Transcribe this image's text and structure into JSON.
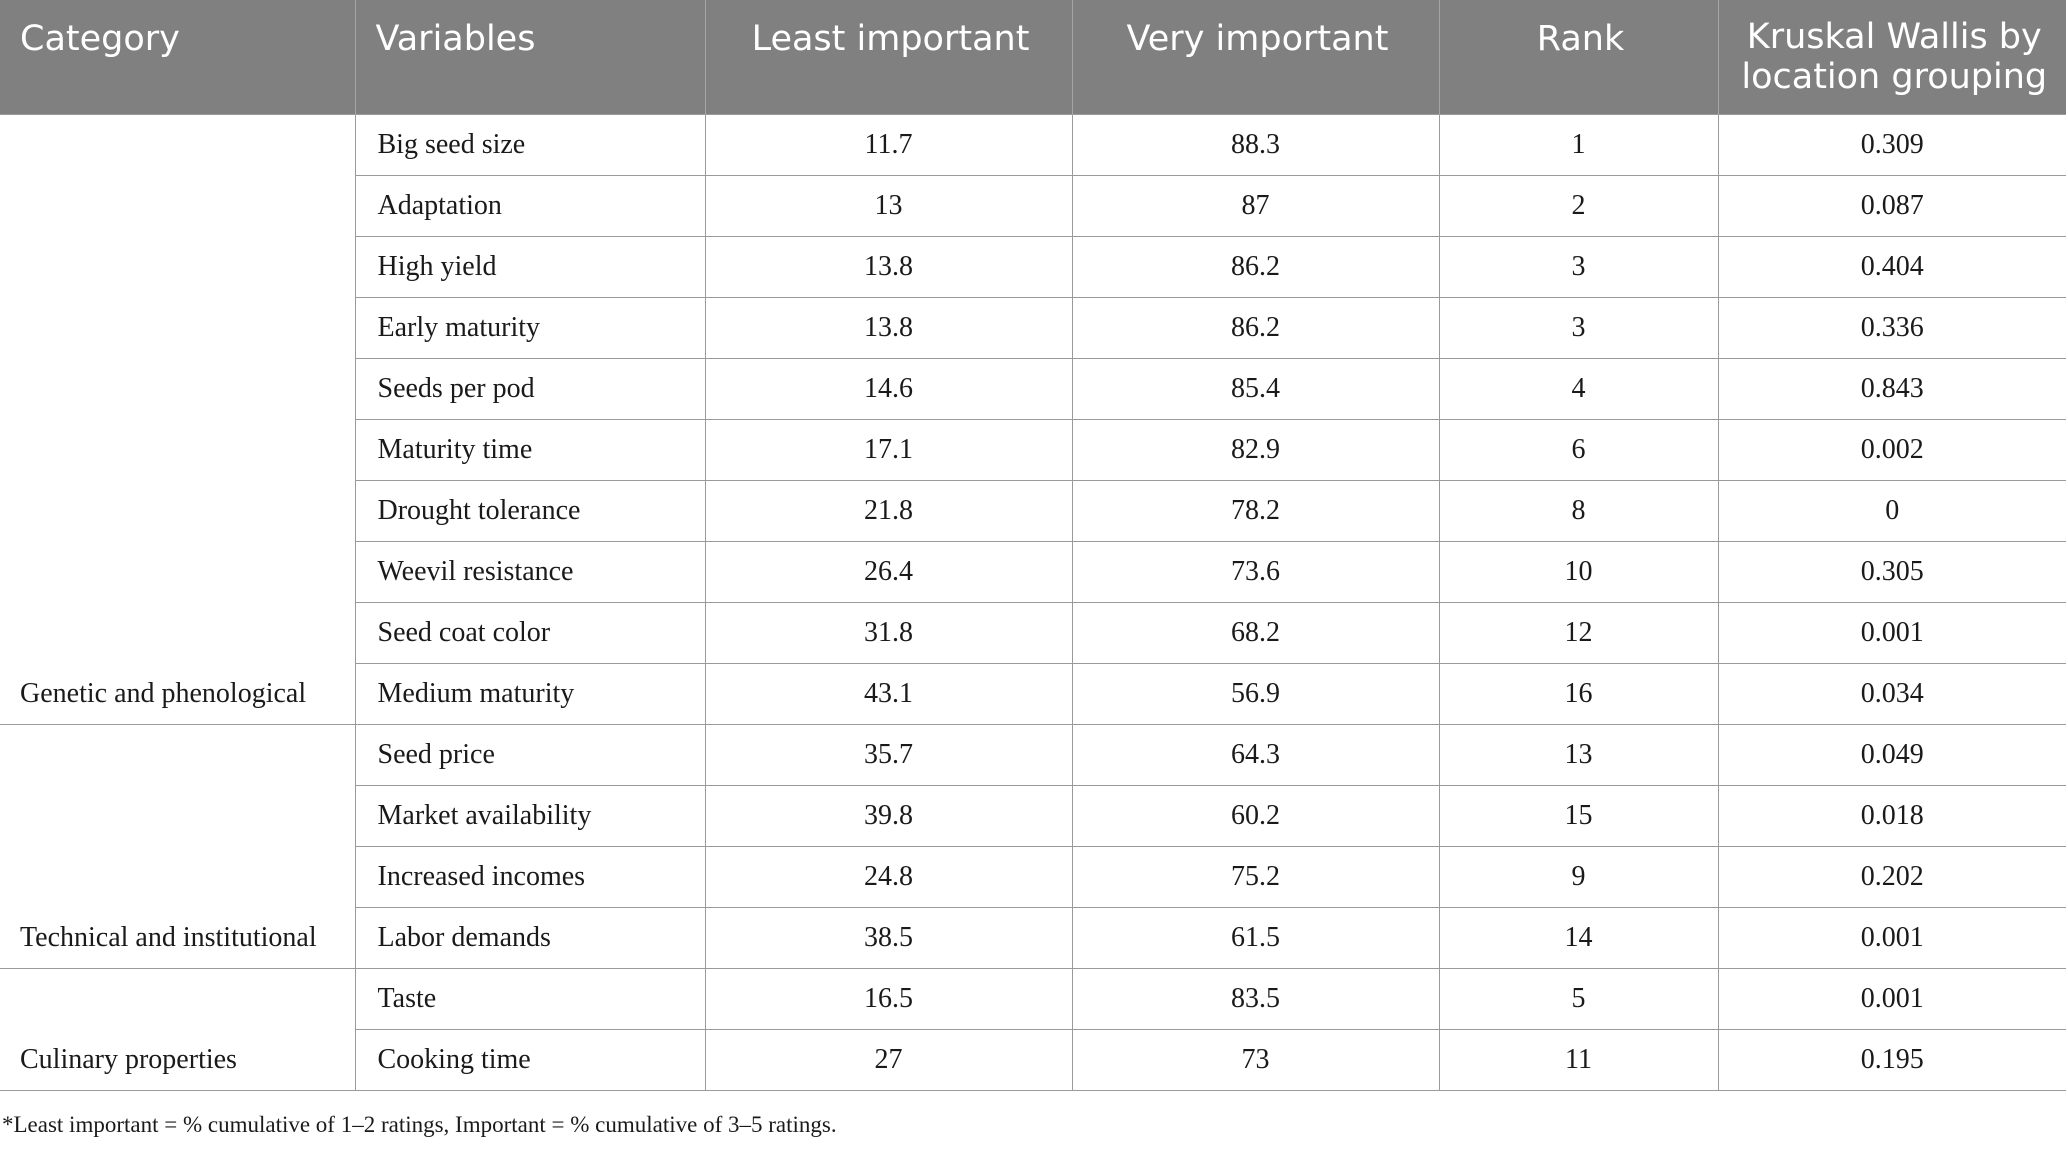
{
  "table": {
    "headers": {
      "category": "Category",
      "variables": "Variables",
      "least": "Least important",
      "very": "Very important",
      "rank": "Rank",
      "kruskal_line1": "Kruskal Wallis by",
      "kruskal_line2": "location grouping"
    },
    "groups": [
      {
        "category": "Genetic and phenological",
        "rows": [
          {
            "variable": "Big seed size",
            "least": "11.7",
            "very": "88.3",
            "rank": "1",
            "kw": "0.309"
          },
          {
            "variable": "Adaptation",
            "least": "13",
            "very": "87",
            "rank": "2",
            "kw": "0.087"
          },
          {
            "variable": "High yield",
            "least": "13.8",
            "very": "86.2",
            "rank": "3",
            "kw": "0.404"
          },
          {
            "variable": "Early maturity",
            "least": "13.8",
            "very": "86.2",
            "rank": "3",
            "kw": "0.336"
          },
          {
            "variable": "Seeds per pod",
            "least": "14.6",
            "very": "85.4",
            "rank": "4",
            "kw": "0.843"
          },
          {
            "variable": "Maturity time",
            "least": "17.1",
            "very": "82.9",
            "rank": "6",
            "kw": "0.002"
          },
          {
            "variable": "Drought tolerance",
            "least": "21.8",
            "very": "78.2",
            "rank": "8",
            "kw": "0"
          },
          {
            "variable": "Weevil resistance",
            "least": "26.4",
            "very": "73.6",
            "rank": "10",
            "kw": "0.305"
          },
          {
            "variable": "Seed coat color",
            "least": "31.8",
            "very": "68.2",
            "rank": "12",
            "kw": "0.001"
          },
          {
            "variable": "Medium maturity",
            "least": "43.1",
            "very": "56.9",
            "rank": "16",
            "kw": "0.034"
          }
        ]
      },
      {
        "category": "Technical and institutional",
        "rows": [
          {
            "variable": "Seed price",
            "least": "35.7",
            "very": "64.3",
            "rank": "13",
            "kw": "0.049"
          },
          {
            "variable": "Market availability",
            "least": "39.8",
            "very": "60.2",
            "rank": "15",
            "kw": "0.018"
          },
          {
            "variable": "Increased incomes",
            "least": "24.8",
            "very": "75.2",
            "rank": "9",
            "kw": "0.202"
          },
          {
            "variable": "Labor demands",
            "least": "38.5",
            "very": "61.5",
            "rank": "14",
            "kw": "0.001"
          }
        ]
      },
      {
        "category": "Culinary properties",
        "rows": [
          {
            "variable": "Taste",
            "least": "16.5",
            "very": "83.5",
            "rank": "5",
            "kw": "0.001"
          },
          {
            "variable": "Cooking time",
            "least": "27",
            "very": "73",
            "rank": "11",
            "kw": "0.195"
          }
        ]
      }
    ]
  },
  "footnote": "*Least important = % cumulative of 1–2 ratings, Important = % cumulative of 3–5 ratings."
}
